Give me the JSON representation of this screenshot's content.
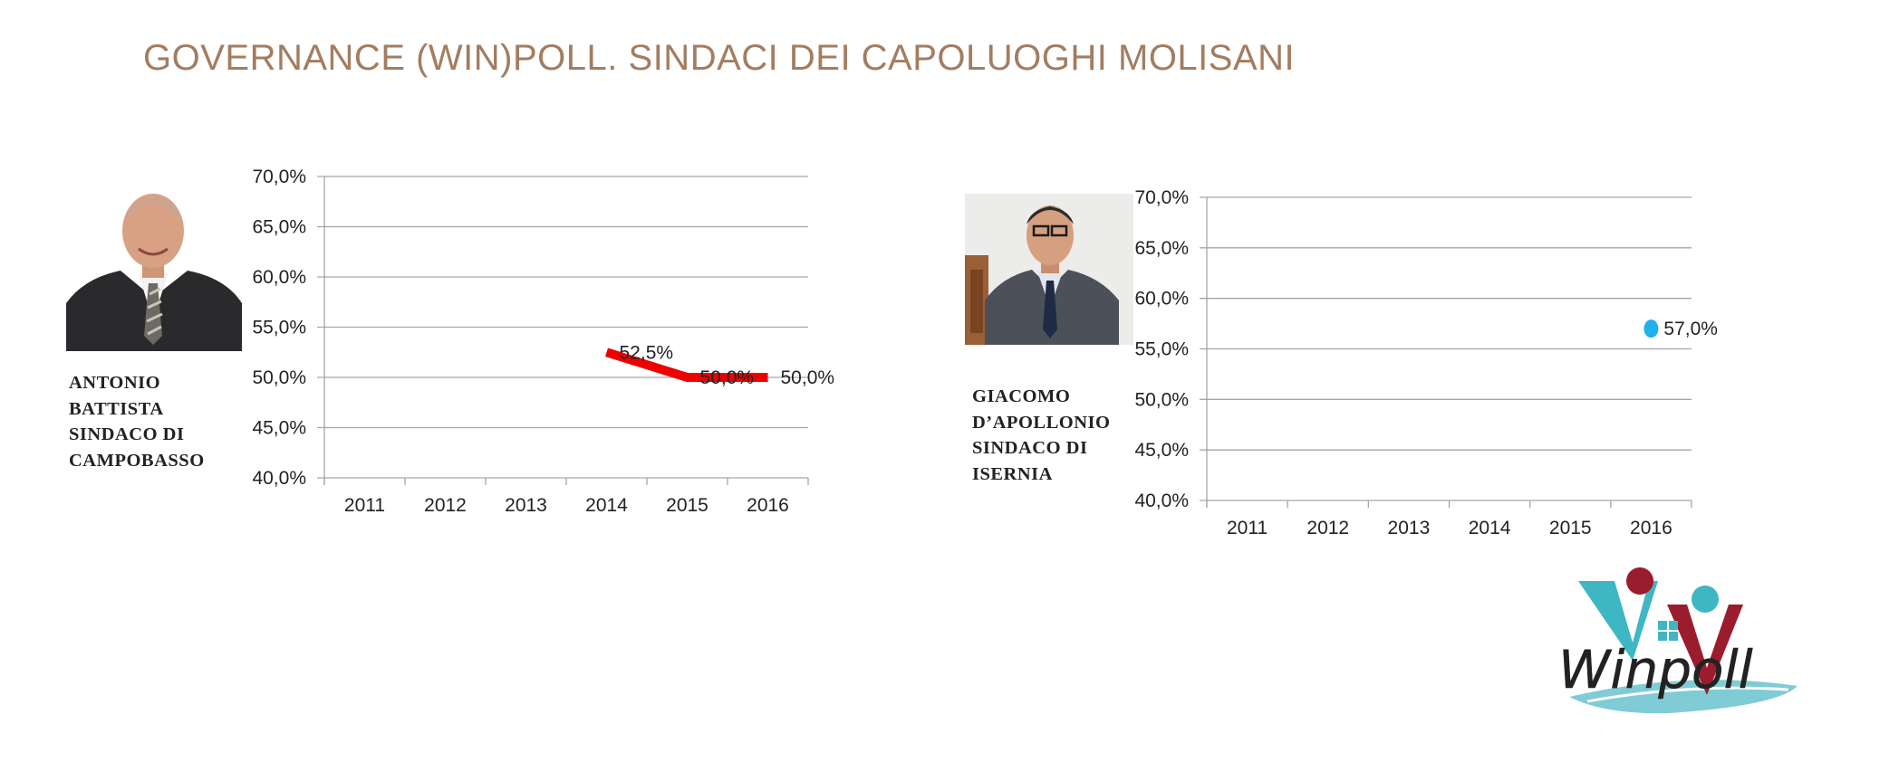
{
  "title": "GOVERNANCE (WIN)POLL. SINDACI DEI CAPOLUOGHI MOLISANI",
  "mayors": [
    {
      "name_lines": [
        "ANTONIO",
        "BATTISTA",
        "SINDACO DI",
        "CAMPOBASSO"
      ]
    },
    {
      "name_lines": [
        "GIACOMO",
        "D’APOLLONIO",
        "SINDACO DI",
        "ISERNIA"
      ]
    }
  ],
  "colors": {
    "title": "#a27d61",
    "series_campobasso": "#ee0000",
    "series_isernia": "#1fb1ea",
    "gridline": "#a6a6a6",
    "logo_teal": "#3fb6c4",
    "logo_red": "#9b1c2c"
  },
  "logo": {
    "text": "Winpoll"
  },
  "chart_data": [
    {
      "type": "line",
      "categories": [
        "2011",
        "2012",
        "2013",
        "2014",
        "2015",
        "2016"
      ],
      "series": [
        {
          "values": [
            null,
            null,
            null,
            52.5,
            50.0,
            50.0
          ]
        }
      ],
      "data_labels": [
        null,
        null,
        null,
        "52,5%",
        "50,0%",
        "50,0%"
      ],
      "ylim": [
        40,
        70
      ],
      "yticks": [
        "40,0%",
        "45,0%",
        "50,0%",
        "55,0%",
        "60,0%",
        "65,0%",
        "70,0%"
      ],
      "grid": true,
      "legend": "none"
    },
    {
      "type": "scatter",
      "categories": [
        "2011",
        "2012",
        "2013",
        "2014",
        "2015",
        "2016"
      ],
      "series": [
        {
          "values": [
            null,
            null,
            null,
            null,
            null,
            57.0
          ]
        }
      ],
      "data_labels": [
        null,
        null,
        null,
        null,
        null,
        "57,0%"
      ],
      "ylim": [
        40,
        70
      ],
      "yticks": [
        "40,0%",
        "45,0%",
        "50,0%",
        "55,0%",
        "60,0%",
        "65,0%",
        "70,0%"
      ],
      "grid": true,
      "legend": "none"
    }
  ]
}
